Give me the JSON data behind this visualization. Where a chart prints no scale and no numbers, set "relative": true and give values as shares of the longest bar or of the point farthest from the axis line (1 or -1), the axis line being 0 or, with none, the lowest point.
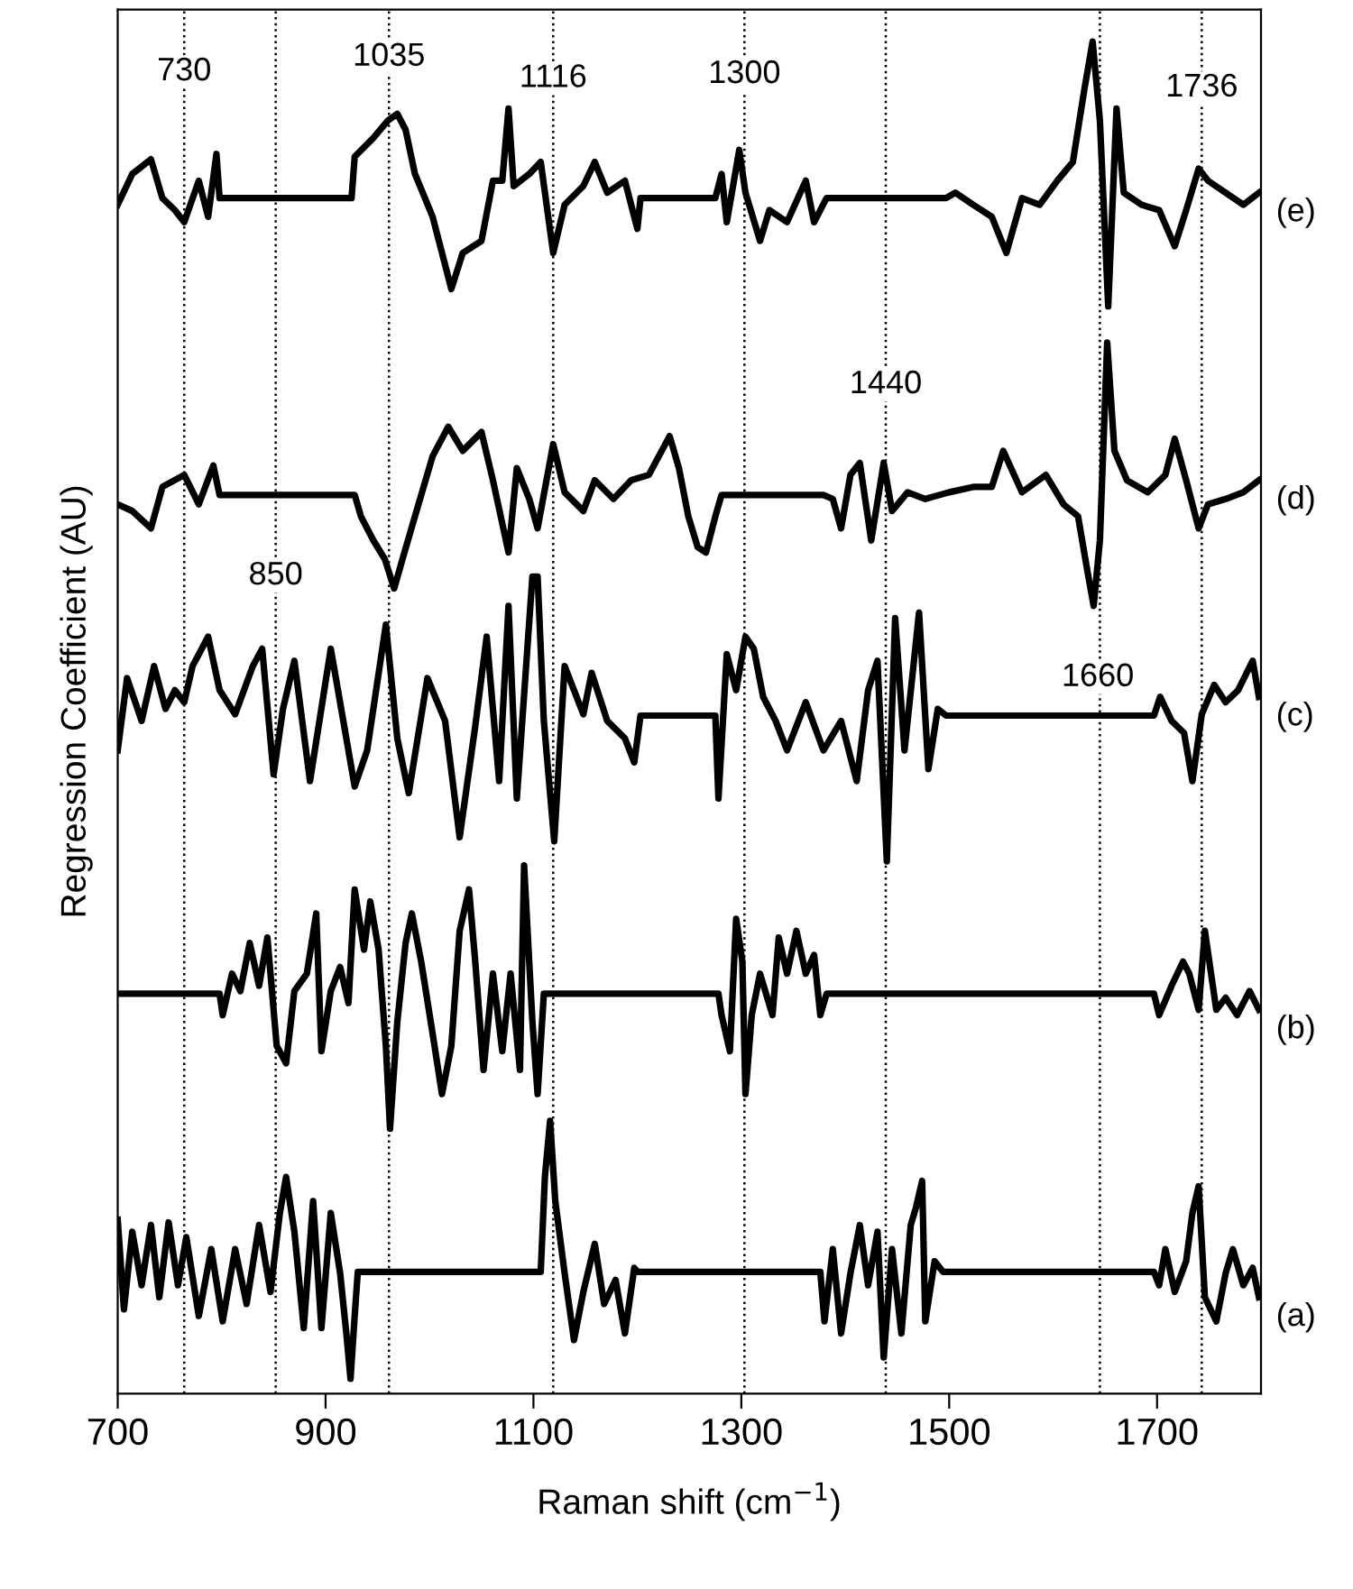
{
  "chart_data": {
    "type": "line",
    "relative": true,
    "xlabel": "Raman shift (cm$^{−1}$)",
    "ylabel": "Regression Coefficient (AU)",
    "xlim": [
      700,
      1800
    ],
    "xticks": [
      700,
      900,
      1100,
      1300,
      1500,
      1700
    ],
    "grid": false,
    "legend": false,
    "marker": "none",
    "line_style": "solid",
    "series": [
      {
        "name": "(a)",
        "color": "#000000",
        "x": [
          700,
          706,
          714,
          723,
          732,
          740,
          749,
          758,
          766,
          778,
          790,
          801,
          813,
          824,
          836,
          847,
          856,
          862,
          870,
          879,
          888,
          896,
          905,
          914,
          920,
          924,
          928,
          931,
          1107,
          1111,
          1116,
          1121,
          1130,
          1139,
          1148,
          1159,
          1168,
          1179,
          1188,
          1197,
          1200,
          1376,
          1380,
          1388,
          1396,
          1405,
          1414,
          1422,
          1431,
          1437,
          1445,
          1454,
          1463,
          1468,
          1474,
          1477,
          1486,
          1494,
          1697,
          1702,
          1708,
          1717,
          1728,
          1734,
          1740,
          1746,
          1757,
          1766,
          1773,
          1783,
          1792,
          1798
        ],
        "values": [
          0.119,
          0.052,
          0.11,
          0.07,
          0.115,
          0.061,
          0.117,
          0.07,
          0.106,
          0.047,
          0.097,
          0.043,
          0.097,
          0.056,
          0.115,
          0.065,
          0.124,
          0.151,
          0.11,
          0.038,
          0.133,
          0.038,
          0.124,
          0.079,
          0.034,
          0.0,
          0.047,
          0.08,
          0.08,
          0.151,
          0.193,
          0.133,
          0.079,
          0.029,
          0.065,
          0.101,
          0.056,
          0.074,
          0.034,
          0.083,
          0.08,
          0.08,
          0.043,
          0.097,
          0.034,
          0.079,
          0.115,
          0.07,
          0.11,
          0.016,
          0.097,
          0.034,
          0.115,
          0.128,
          0.148,
          0.043,
          0.088,
          0.08,
          0.08,
          0.07,
          0.097,
          0.065,
          0.088,
          0.124,
          0.144,
          0.061,
          0.043,
          0.079,
          0.097,
          0.07,
          0.083,
          0.061
        ]
      },
      {
        "name": "(b)",
        "color": "#000000",
        "x": [
          700,
          798,
          801,
          810,
          818,
          827,
          836,
          844,
          853,
          862,
          870,
          882,
          891,
          896,
          905,
          914,
          922,
          928,
          937,
          943,
          951,
          958,
          962,
          969,
          977,
          983,
          992,
          1003,
          1012,
          1021,
          1029,
          1038,
          1044,
          1052,
          1061,
          1070,
          1078,
          1087,
          1091,
          1099,
          1104,
          1110,
          1278,
          1281,
          1289,
          1295,
          1301,
          1304,
          1310,
          1318,
          1330,
          1336,
          1344,
          1353,
          1362,
          1370,
          1376,
          1382,
          1697,
          1702,
          1714,
          1725,
          1731,
          1740,
          1746,
          1757,
          1766,
          1777,
          1789,
          1798
        ],
        "values": [
          0.288,
          0.288,
          0.272,
          0.303,
          0.29,
          0.326,
          0.294,
          0.33,
          0.249,
          0.236,
          0.29,
          0.303,
          0.348,
          0.245,
          0.29,
          0.308,
          0.281,
          0.366,
          0.321,
          0.357,
          0.321,
          0.249,
          0.187,
          0.267,
          0.326,
          0.348,
          0.312,
          0.258,
          0.213,
          0.249,
          0.335,
          0.366,
          0.312,
          0.231,
          0.303,
          0.245,
          0.303,
          0.231,
          0.384,
          0.267,
          0.213,
          0.288,
          0.288,
          0.272,
          0.245,
          0.344,
          0.312,
          0.213,
          0.272,
          0.303,
          0.272,
          0.33,
          0.303,
          0.335,
          0.303,
          0.317,
          0.272,
          0.288,
          0.288,
          0.272,
          0.294,
          0.312,
          0.303,
          0.276,
          0.335,
          0.276,
          0.285,
          0.272,
          0.29,
          0.276
        ]
      },
      {
        "name": "(c)",
        "color": "#000000",
        "x": [
          700,
          709,
          723,
          735,
          746,
          755,
          764,
          772,
          787,
          798,
          813,
          830,
          839,
          850,
          859,
          870,
          885,
          905,
          928,
          940,
          958,
          969,
          980,
          998,
          1015,
          1029,
          1044,
          1055,
          1067,
          1076,
          1084,
          1099,
          1104,
          1110,
          1120,
          1130,
          1148,
          1156,
          1171,
          1188,
          1197,
          1203,
          1275,
          1278,
          1286,
          1295,
          1304,
          1312,
          1321,
          1333,
          1344,
          1362,
          1379,
          1396,
          1411,
          1422,
          1431,
          1440,
          1448,
          1457,
          1471,
          1480,
          1489,
          1497,
          1697,
          1703,
          1714,
          1726,
          1734,
          1743,
          1755,
          1766,
          1778,
          1792,
          1798
        ],
        "values": [
          0.47,
          0.524,
          0.492,
          0.533,
          0.501,
          0.515,
          0.506,
          0.533,
          0.555,
          0.515,
          0.497,
          0.533,
          0.546,
          0.452,
          0.501,
          0.537,
          0.447,
          0.546,
          0.443,
          0.47,
          0.564,
          0.479,
          0.438,
          0.524,
          0.492,
          0.405,
          0.488,
          0.555,
          0.447,
          0.578,
          0.434,
          0.6,
          0.6,
          0.492,
          0.402,
          0.533,
          0.497,
          0.528,
          0.492,
          0.479,
          0.461,
          0.496,
          0.496,
          0.434,
          0.542,
          0.515,
          0.555,
          0.546,
          0.51,
          0.492,
          0.47,
          0.506,
          0.47,
          0.492,
          0.447,
          0.515,
          0.537,
          0.387,
          0.569,
          0.47,
          0.573,
          0.456,
          0.501,
          0.496,
          0.496,
          0.51,
          0.492,
          0.483,
          0.447,
          0.497,
          0.519,
          0.506,
          0.515,
          0.537,
          0.51
        ]
      },
      {
        "name": "(d)",
        "color": "#000000",
        "x": [
          700,
          714,
          732,
          743,
          764,
          778,
          792,
          798,
          928,
          934,
          946,
          957,
          966,
          974,
          986,
          1003,
          1018,
          1032,
          1050,
          1061,
          1076,
          1084,
          1096,
          1104,
          1119,
          1130,
          1148,
          1159,
          1177,
          1194,
          1211,
          1231,
          1240,
          1249,
          1258,
          1266,
          1275,
          1281,
          1379,
          1388,
          1396,
          1405,
          1414,
          1425,
          1437,
          1445,
          1460,
          1477,
          1500,
          1523,
          1541,
          1552,
          1570,
          1593,
          1610,
          1624,
          1633,
          1639,
          1645,
          1652,
          1659,
          1671,
          1691,
          1708,
          1717,
          1728,
          1740,
          1749,
          1766,
          1783,
          1798
        ],
        "values": [
          0.654,
          0.649,
          0.636,
          0.667,
          0.676,
          0.654,
          0.683,
          0.661,
          0.661,
          0.645,
          0.627,
          0.613,
          0.591,
          0.613,
          0.645,
          0.69,
          0.712,
          0.694,
          0.708,
          0.672,
          0.618,
          0.681,
          0.658,
          0.636,
          0.699,
          0.663,
          0.649,
          0.672,
          0.658,
          0.672,
          0.676,
          0.705,
          0.681,
          0.645,
          0.622,
          0.618,
          0.645,
          0.661,
          0.661,
          0.658,
          0.636,
          0.676,
          0.685,
          0.627,
          0.685,
          0.649,
          0.663,
          0.658,
          0.663,
          0.667,
          0.667,
          0.694,
          0.663,
          0.676,
          0.654,
          0.645,
          0.604,
          0.578,
          0.627,
          0.775,
          0.694,
          0.672,
          0.663,
          0.676,
          0.703,
          0.672,
          0.636,
          0.654,
          0.658,
          0.663,
          0.672
        ]
      },
      {
        "name": "(e)",
        "color": "#000000",
        "x": [
          700,
          714,
          732,
          743,
          755,
          764,
          778,
          787,
          795,
          798,
          925,
          928,
          946,
          960,
          969,
          977,
          986,
          1003,
          1012,
          1021,
          1032,
          1050,
          1061,
          1070,
          1076,
          1081,
          1096,
          1107,
          1119,
          1130,
          1148,
          1159,
          1171,
          1188,
          1200,
          1203,
          1275,
          1281,
          1286,
          1298,
          1304,
          1318,
          1327,
          1344,
          1362,
          1370,
          1382,
          1497,
          1506,
          1523,
          1541,
          1555,
          1570,
          1587,
          1604,
          1619,
          1630,
          1638,
          1645,
          1653,
          1661,
          1668,
          1685,
          1702,
          1717,
          1728,
          1740,
          1749,
          1766,
          1783,
          1798
        ],
        "values": [
          0.878,
          0.901,
          0.912,
          0.883,
          0.874,
          0.865,
          0.896,
          0.869,
          0.916,
          0.883,
          0.883,
          0.914,
          0.928,
          0.941,
          0.946,
          0.934,
          0.901,
          0.869,
          0.842,
          0.815,
          0.842,
          0.851,
          0.896,
          0.896,
          0.95,
          0.892,
          0.901,
          0.91,
          0.842,
          0.878,
          0.892,
          0.91,
          0.887,
          0.896,
          0.86,
          0.883,
          0.883,
          0.901,
          0.865,
          0.919,
          0.887,
          0.851,
          0.874,
          0.865,
          0.896,
          0.865,
          0.883,
          0.883,
          0.887,
          0.878,
          0.869,
          0.842,
          0.883,
          0.878,
          0.896,
          0.91,
          0.964,
          1.0,
          0.941,
          0.802,
          0.95,
          0.887,
          0.878,
          0.874,
          0.847,
          0.874,
          0.905,
          0.896,
          0.887,
          0.878,
          0.887
        ]
      }
    ],
    "ref_lines": [
      {
        "axis": "x",
        "value": 764,
        "color": "#000000",
        "line_style": "dotted"
      },
      {
        "axis": "x",
        "value": 852,
        "color": "#000000",
        "line_style": "dotted"
      },
      {
        "axis": "x",
        "value": 961,
        "color": "#000000",
        "line_style": "dotted"
      },
      {
        "axis": "x",
        "value": 1119,
        "color": "#000000",
        "line_style": "dotted"
      },
      {
        "axis": "x",
        "value": 1303,
        "color": "#000000",
        "line_style": "dotted"
      },
      {
        "axis": "x",
        "value": 1439,
        "color": "#000000",
        "line_style": "dotted"
      },
      {
        "axis": "x",
        "value": 1645,
        "color": "#000000",
        "line_style": "dotted"
      },
      {
        "axis": "x",
        "value": 1743,
        "color": "#000000",
        "line_style": "dotted"
      }
    ],
    "annotations": [
      {
        "text": "730",
        "x": 764,
        "y": 0.966
      },
      {
        "text": "850",
        "x": 852,
        "y": 0.589
      },
      {
        "text": "1035",
        "x": 961,
        "y": 0.977
      },
      {
        "text": "1116",
        "x": 1119,
        "y": 0.961
      },
      {
        "text": "1300",
        "x": 1303,
        "y": 0.964
      },
      {
        "text": "1440",
        "x": 1439,
        "y": 0.732
      },
      {
        "text": "1660",
        "x": 1643,
        "y": 0.513
      },
      {
        "text": "1736",
        "x": 1743,
        "y": 0.954
      }
    ]
  }
}
